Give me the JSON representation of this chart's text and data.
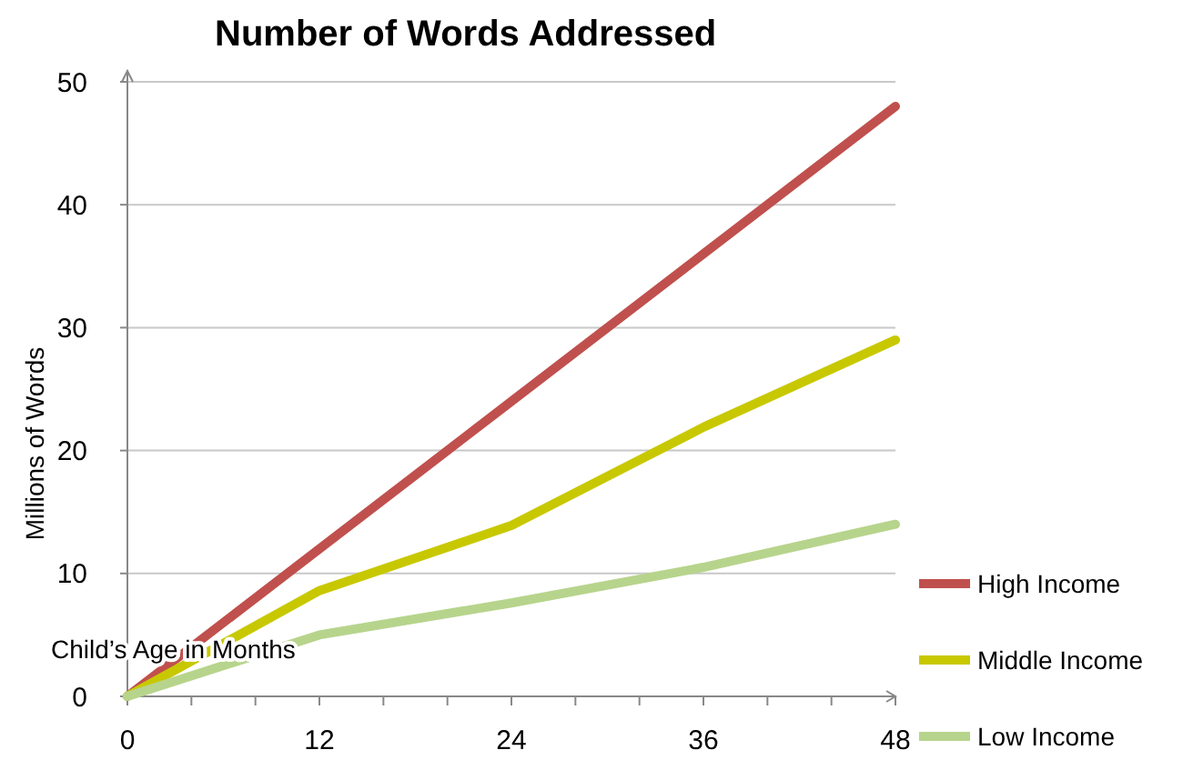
{
  "chart_data": {
    "type": "line",
    "title": "Number of Words Addressed",
    "xlabel": "Child’s Age in Months",
    "ylabel": "Millions of Words",
    "x": [
      0,
      12,
      24,
      36,
      48
    ],
    "series": [
      {
        "name": "High Income",
        "color": "#c0504d",
        "values": [
          0,
          12,
          24,
          36,
          48
        ]
      },
      {
        "name": "Middle Income",
        "color": "#c8c800",
        "values": [
          0,
          8.6,
          13.9,
          21.9,
          29
        ]
      },
      {
        "name": "Low Income",
        "color": "#b7d48c",
        "values": [
          0,
          5,
          7.6,
          10.5,
          14
        ]
      }
    ],
    "xlim": [
      0,
      48
    ],
    "xticks": [
      0,
      {
        "value": 4,
        "label": null
      },
      {
        "value": 8,
        "label": null
      },
      12,
      {
        "value": 16,
        "label": null
      },
      {
        "value": 20,
        "label": null
      },
      24,
      {
        "value": 28,
        "label": null
      },
      {
        "value": 32,
        "label": null
      },
      36,
      {
        "value": 40,
        "label": null
      },
      {
        "value": 44,
        "label": null
      },
      48
    ],
    "ylim": [
      0,
      50
    ],
    "yticks": [
      0,
      10,
      20,
      30,
      40,
      50
    ],
    "grid": "y",
    "legend": "bottom right",
    "marker": "none",
    "line_style": "solid"
  }
}
